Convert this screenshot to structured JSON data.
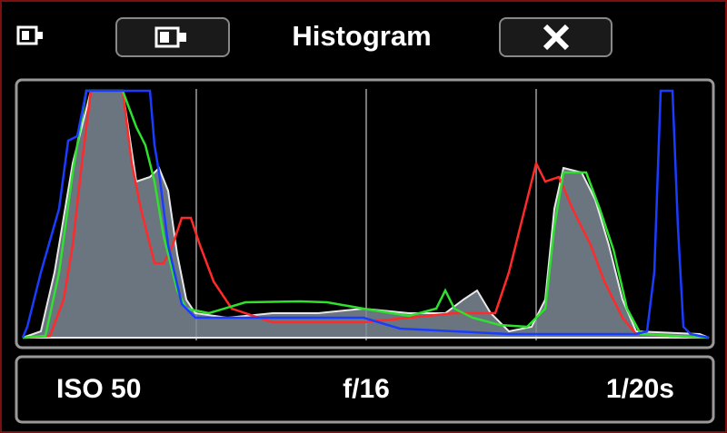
{
  "header": {
    "title": "Histogram"
  },
  "info": {
    "iso": "ISO 50",
    "aperture": "f/16",
    "shutter": "1/20s"
  }
}
